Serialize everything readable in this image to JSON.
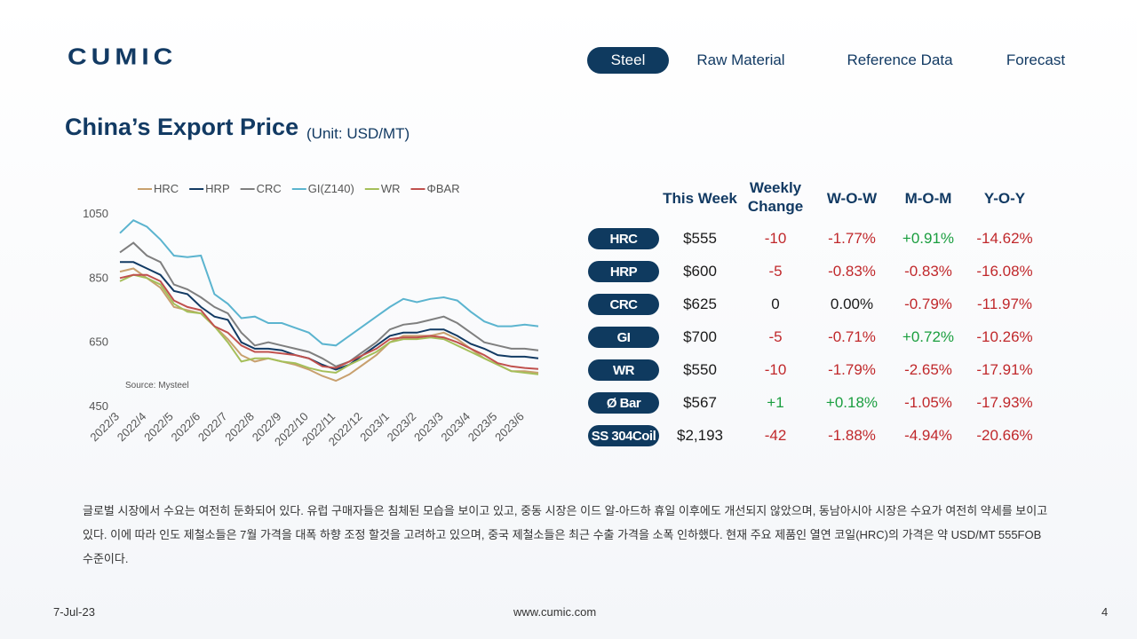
{
  "header": {
    "logo": "CUMIC",
    "nav": [
      "Steel",
      "Raw Material",
      "Reference Data",
      "Forecast"
    ],
    "active": 0
  },
  "title": "China’s Export Price",
  "unit": "(Unit: USD/MT)",
  "chart_data": {
    "type": "line",
    "annotation": "Source: Mysteel",
    "categories": [
      "2022/3",
      null,
      "2022/4",
      null,
      "2022/5",
      null,
      "2022/6",
      null,
      "2022/7",
      null,
      "2022/8",
      null,
      "2022/9",
      null,
      "2022/10",
      null,
      "2022/11",
      null,
      "2022/12",
      null,
      "2023/1",
      null,
      "2023/2",
      null,
      "2023/3",
      null,
      "2023/4",
      null,
      "2023/5",
      null,
      "2023/6",
      null
    ],
    "series": [
      {
        "name": "HRC",
        "color": "#c8a06e",
        "values": [
          870,
          880,
          850,
          820,
          760,
          750,
          740,
          700,
          660,
          610,
          590,
          600,
          590,
          580,
          565,
          545,
          530,
          550,
          580,
          610,
          650,
          670,
          670,
          670,
          680,
          660,
          630,
          600,
          580,
          560,
          560,
          555
        ]
      },
      {
        "name": "HRP",
        "color": "#123a63",
        "values": [
          900,
          900,
          880,
          860,
          810,
          800,
          760,
          730,
          720,
          650,
          630,
          630,
          625,
          610,
          600,
          580,
          565,
          580,
          610,
          640,
          670,
          680,
          680,
          690,
          690,
          670,
          645,
          630,
          610,
          605,
          605,
          600
        ]
      },
      {
        "name": "CRC",
        "color": "#7f7f7f",
        "values": [
          930,
          960,
          920,
          900,
          830,
          815,
          790,
          760,
          740,
          680,
          640,
          650,
          640,
          630,
          620,
          600,
          575,
          590,
          620,
          650,
          690,
          705,
          710,
          720,
          730,
          710,
          680,
          650,
          640,
          630,
          630,
          625
        ]
      },
      {
        "name": "GI(Z140)",
        "color": "#5bb4cf",
        "values": [
          990,
          1030,
          1010,
          970,
          920,
          915,
          920,
          800,
          770,
          725,
          730,
          710,
          710,
          695,
          680,
          645,
          640,
          670,
          700,
          730,
          760,
          785,
          775,
          785,
          790,
          780,
          745,
          715,
          700,
          700,
          705,
          700
        ]
      },
      {
        "name": "WR",
        "color": "#a5bf5a",
        "values": [
          840,
          860,
          850,
          830,
          770,
          745,
          740,
          700,
          650,
          590,
          600,
          600,
          590,
          585,
          570,
          560,
          555,
          580,
          600,
          620,
          650,
          660,
          660,
          665,
          660,
          640,
          620,
          600,
          580,
          560,
          555,
          550
        ]
      },
      {
        "name": "ΦBAR",
        "color": "#c0504d",
        "values": [
          850,
          860,
          860,
          840,
          780,
          760,
          750,
          700,
          680,
          640,
          620,
          620,
          615,
          610,
          600,
          575,
          570,
          590,
          610,
          630,
          660,
          665,
          665,
          670,
          665,
          650,
          630,
          610,
          585,
          575,
          570,
          567
        ]
      }
    ],
    "ylim": [
      450,
      1050
    ],
    "yticks": [
      450,
      650,
      850,
      1050
    ],
    "grid": false,
    "legend": "top"
  },
  "table": {
    "columns": [
      "This Week",
      "Weekly Change",
      "W-O-W",
      "M-O-M",
      "Y-O-Y"
    ],
    "rows": [
      [
        "HRC",
        "$555",
        "-10",
        "-1.77%",
        "+0.91%",
        "-14.62%"
      ],
      [
        "HRP",
        "$600",
        "-5",
        "-0.83%",
        "-0.83%",
        "-16.08%"
      ],
      [
        "CRC",
        "$625",
        "0",
        "0.00%",
        "-0.79%",
        "-11.97%"
      ],
      [
        "GI",
        "$700",
        "-5",
        "-0.71%",
        "+0.72%",
        "-10.26%"
      ],
      [
        "WR",
        "$550",
        "-10",
        "-1.79%",
        "-2.65%",
        "-17.91%"
      ],
      [
        "Ø Bar",
        "$567",
        "+1",
        "+0.18%",
        "-1.05%",
        "-17.93%"
      ],
      [
        "SS 304Coil",
        "$2,193",
        "-42",
        "-1.88%",
        "-4.94%",
        "-20.66%"
      ]
    ]
  },
  "paragraph": "글로벌 시장에서 수요는 여전히 둔화되어 있다. 유럽 구매자들은 침체된 모습을 보이고 있고, 중동 시장은 이드 알-아드하 휴일 이후에도 개선되지 않았으며, 동남아시아 시장은 수요가 여전히 약세를 보이고 있다. 이에 따라 인도 제철소들은 7월 가격을 대폭 하향 조정 할것을 고려하고 있으며, 중국 제철소들은 최근 수출 가격을 소폭 인하했다. 현재 주요 제품인 열연 코일(HRC)의 가격은 약 USD/MT 555FOB 수준이다.",
  "footer": {
    "date": "7-Jul-23",
    "url": "www.cumic.com",
    "page": 4
  }
}
